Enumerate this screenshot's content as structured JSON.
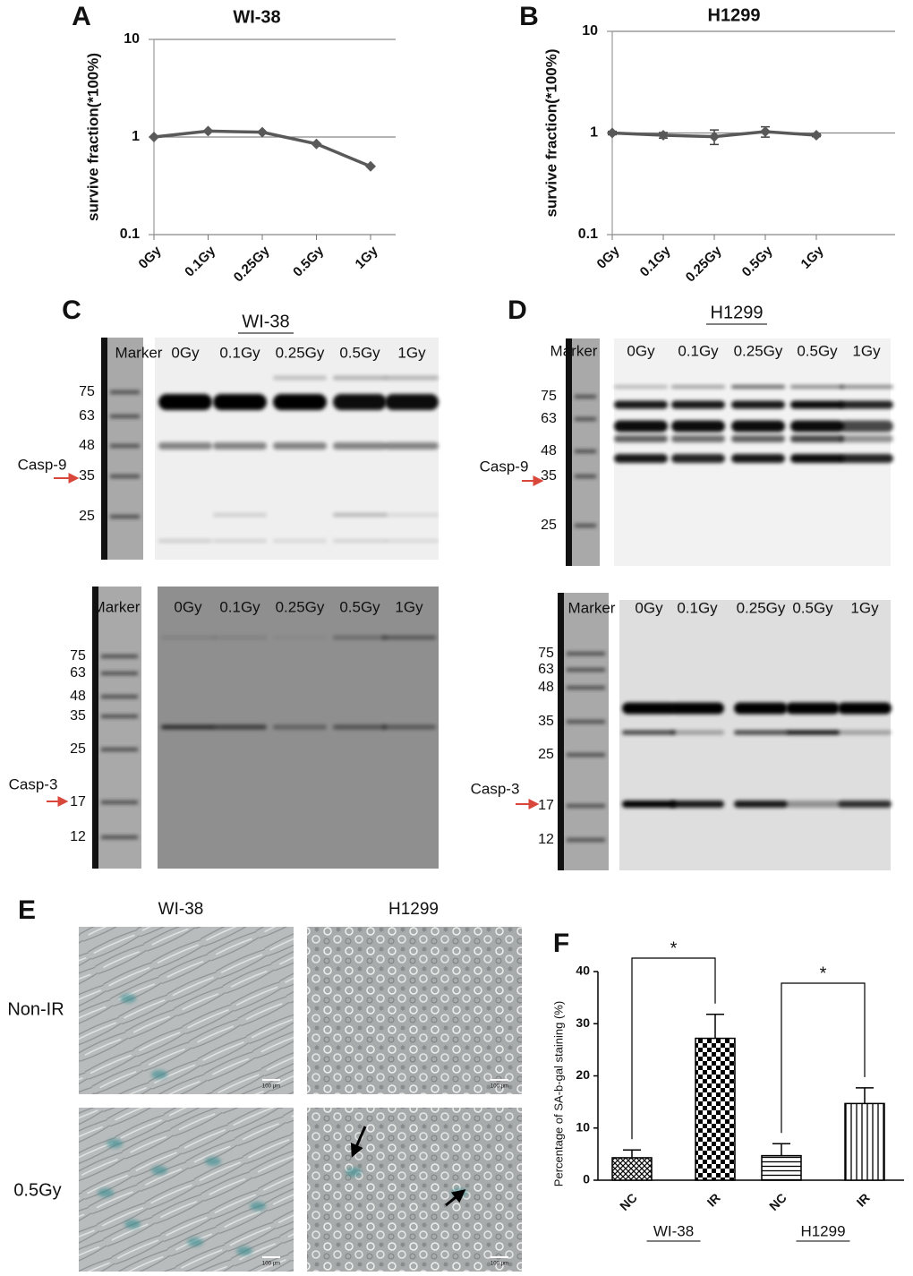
{
  "chart_data": [
    {
      "panel": "A",
      "type": "line",
      "title": "WI-38",
      "ylabel": "survive fraction(*100%)",
      "categories": [
        "0Gy",
        "0.1Gy",
        "0.25Gy",
        "0.5Gy",
        "1Gy"
      ],
      "values": [
        1,
        1.15,
        1.12,
        0.85,
        0.5
      ],
      "color": "#595959",
      "log_scale": true,
      "grid": true,
      "ylim": [
        0.1,
        10
      ],
      "yticks": [
        0.1,
        1,
        10
      ]
    },
    {
      "panel": "B",
      "type": "line",
      "title": "H1299",
      "ylabel": "survive fraction(*100%)",
      "categories": [
        "0Gy",
        "0.1Gy",
        "0.25Gy",
        "0.5Gy",
        "1Gy"
      ],
      "values": [
        1,
        0.95,
        0.92,
        1.03,
        0.95
      ],
      "errors": [
        0.04,
        0.06,
        0.15,
        0.12,
        0.03
      ],
      "color": "#595959",
      "log_scale": true,
      "grid": true,
      "ylim": [
        0.1,
        10
      ],
      "yticks": [
        0.1,
        1,
        10
      ]
    },
    {
      "panel": "F",
      "type": "bar",
      "ylabel": "Percentage of SA-b-gal staining (%)",
      "categories": [
        "NC",
        "IR",
        "NC",
        "IR"
      ],
      "groups": [
        "WI-38",
        "H1299"
      ],
      "values": [
        4.3,
        27.2,
        4.7,
        14.7
      ],
      "errors": [
        1.5,
        4.6,
        2.3,
        3.0
      ],
      "annotations": [
        "*",
        "*"
      ],
      "color": "#000000",
      "ylim": [
        0,
        40
      ],
      "yticks": [
        0,
        10,
        20,
        30,
        40
      ]
    }
  ],
  "western_blots": [
    {
      "letter": "C",
      "title": "WI-38",
      "membranes": [
        {
          "protein": "Casp-9",
          "marker_label": "Marker",
          "lanes": [
            "0Gy",
            "0.1Gy",
            "0.25Gy",
            "0.5Gy",
            "1Gy"
          ],
          "mw": [
            75,
            63,
            48,
            35,
            25
          ]
        },
        {
          "protein": "Casp-3",
          "marker_label": "Marker",
          "lanes": [
            "0Gy",
            "0.1Gy",
            "0.25Gy",
            "0.5Gy",
            "1Gy"
          ],
          "mw": [
            75,
            63,
            48,
            35,
            25,
            17,
            12
          ]
        }
      ]
    },
    {
      "letter": "D",
      "title": "H1299",
      "membranes": [
        {
          "protein": "Casp-9",
          "marker_label": "Marker",
          "lanes": [
            "0Gy",
            "0.1Gy",
            "0.25Gy",
            "0.5Gy",
            "1Gy"
          ],
          "mw": [
            75,
            63,
            48,
            35,
            25
          ]
        },
        {
          "protein": "Casp-3",
          "marker_label": "Marker",
          "lanes": [
            "0Gy",
            "0.1Gy",
            "0.25Gy",
            "0.5Gy",
            "1Gy"
          ],
          "mw": [
            75,
            63,
            48,
            35,
            25,
            17,
            12
          ]
        }
      ]
    }
  ],
  "micrographs": {
    "letter": "E",
    "columns": [
      "WI-38",
      "H1299"
    ],
    "rows": [
      "Non-IR",
      "0.5Gy"
    ],
    "scale_bar": "100 μm"
  }
}
